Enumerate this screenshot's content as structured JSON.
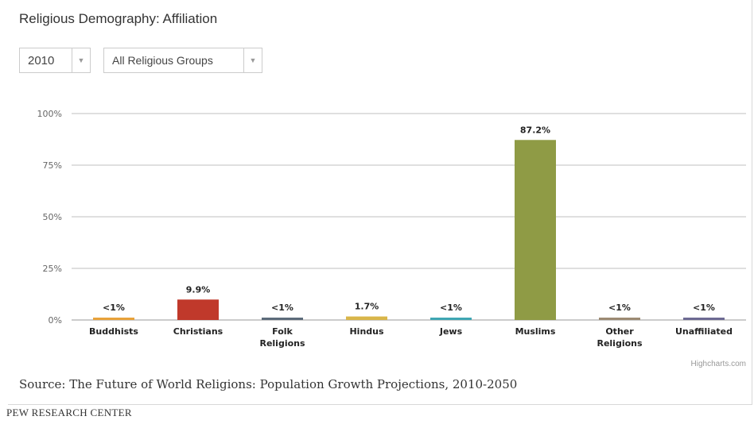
{
  "title": "Religious Demography: Affiliation",
  "filters": {
    "year": "2010",
    "group": "All Religious Groups"
  },
  "icons": {
    "dropdown": "chevron-down-icon"
  },
  "credit": "Highcharts.com",
  "source": "Source: The Future of World Religions: Population Growth Projections, 2010-2050",
  "footer": "PEW RESEARCH CENTER",
  "chart_data": {
    "type": "bar",
    "categories": [
      "Buddhists",
      "Christians",
      "Folk Religions",
      "Hindus",
      "Jews",
      "Muslims",
      "Other Religions",
      "Unaffiliated"
    ],
    "category_lines": [
      [
        "Buddhists"
      ],
      [
        "Christians"
      ],
      [
        "Folk",
        "Religions"
      ],
      [
        "Hindus"
      ],
      [
        "Jews"
      ],
      [
        "Muslims"
      ],
      [
        "Other",
        "Religions"
      ],
      [
        "Unaffiliated"
      ]
    ],
    "values": [
      0.5,
      9.9,
      0.5,
      1.7,
      0.5,
      87.2,
      0.5,
      0.5
    ],
    "data_labels": [
      "<1%",
      "9.9%",
      "<1%",
      "1.7%",
      "<1%",
      "87.2%",
      "<1%",
      "<1%"
    ],
    "colors": [
      "#e8a23a",
      "#c0392b",
      "#5c6b7a",
      "#d9b64a",
      "#3fa6b3",
      "#8f9b45",
      "#9c8a73",
      "#6d6a93"
    ],
    "yticks": [
      "0%",
      "25%",
      "50%",
      "75%",
      "100%"
    ],
    "ytick_values": [
      0,
      25,
      50,
      75,
      100
    ],
    "ylim": [
      0,
      100
    ],
    "grid": true
  }
}
